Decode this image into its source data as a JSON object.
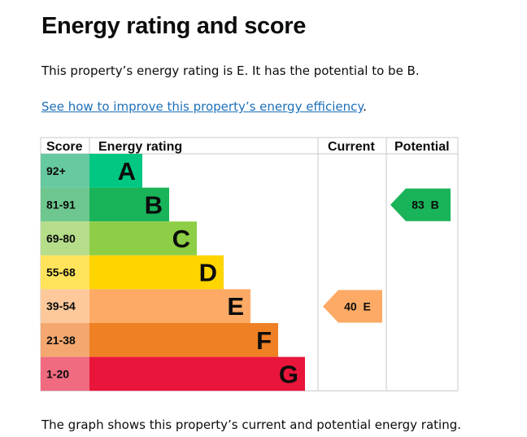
{
  "title": "Energy rating and score",
  "summary": "This property’s energy rating is E. It has the potential to be B.",
  "link": "See how to improve this property’s energy efficiency",
  "link_suffix": ".",
  "footer": "The graph shows this property’s current and potential energy rating.",
  "chart_data": {
    "type": "table",
    "headers": [
      "Score",
      "Energy rating",
      "Current",
      "Potential"
    ],
    "bands": [
      {
        "score": "92+",
        "letter": "A",
        "color": "#00c781",
        "score_color": "#67c9a0"
      },
      {
        "score": "81-91",
        "letter": "B",
        "color": "#19b459",
        "score_color": "#6ec78f"
      },
      {
        "score": "69-80",
        "letter": "C",
        "color": "#8dce46",
        "score_color": "#b5dd8a"
      },
      {
        "score": "55-68",
        "letter": "D",
        "color": "#ffd500",
        "score_color": "#ffe35a"
      },
      {
        "score": "39-54",
        "letter": "E",
        "color": "#fcaa65",
        "score_color": "#fdc99a"
      },
      {
        "score": "21-38",
        "letter": "F",
        "color": "#ef8023",
        "score_color": "#f4a870"
      },
      {
        "score": "1-20",
        "letter": "G",
        "color": "#e9153b",
        "score_color": "#f06a80"
      }
    ],
    "current": {
      "score": 40,
      "letter": "E",
      "label": "40 E",
      "color": "#fcaa65"
    },
    "potential": {
      "score": 83,
      "letter": "B",
      "label": "83 B",
      "color": "#19b459"
    }
  }
}
